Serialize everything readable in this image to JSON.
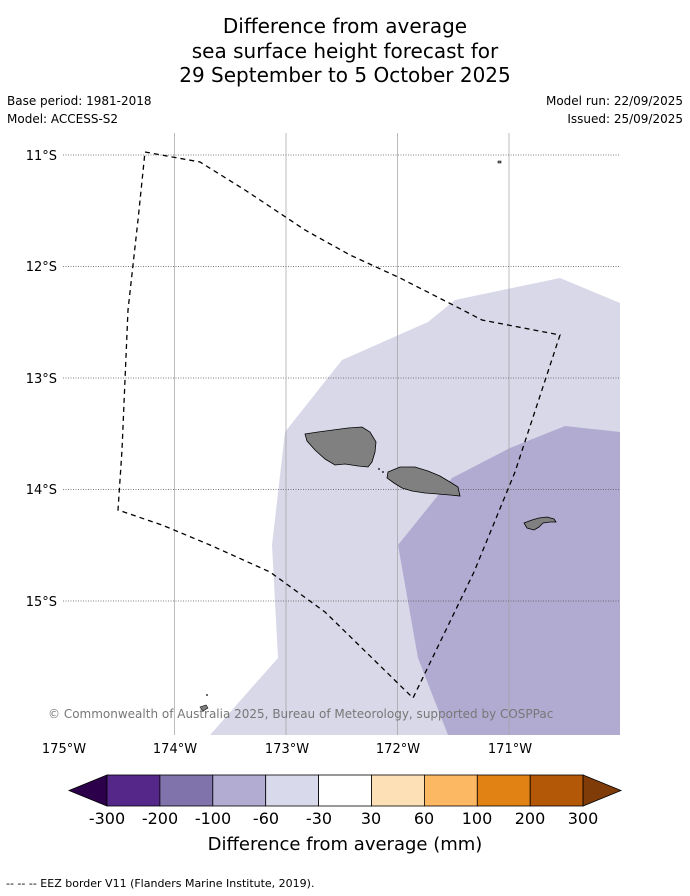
{
  "title": {
    "line1": "Difference from average",
    "line2": "sea surface height forecast for",
    "line3": "29 September to 5 October 2025"
  },
  "meta": {
    "base_period": "Base period: 1981-2018",
    "model": "Model: ACCESS-S2",
    "model_run": "Model run: 22/09/2025",
    "issued": "Issued: 25/09/2025"
  },
  "map": {
    "lat_labels": [
      "11°S",
      "12°S",
      "13°S",
      "14°S",
      "15°S"
    ],
    "lon_labels": [
      "175°W",
      "174°W",
      "173°W",
      "172°W",
      "171°W"
    ],
    "copyright": "© Commonwealth of Australia 2025, Bureau of Meteorology, supported by COSPPac",
    "colors": {
      "land": "#808080",
      "class_neg30_0": "#d8d8e9",
      "class_neg60_neg30": "#b1abd2"
    }
  },
  "colorbar": {
    "tick_labels": [
      "-300",
      "-200",
      "-100",
      "-60",
      "-30",
      "30",
      "60",
      "100",
      "200",
      "300"
    ],
    "label": "Difference from average (mm)",
    "colors": [
      "#2d004b",
      "#542788",
      "#8073ac",
      "#b2abd2",
      "#d8daeb",
      "#ffffff",
      "#fee0b6",
      "#fdb863",
      "#e08214",
      "#b35806",
      "#7f3b08"
    ]
  },
  "footer": {
    "legend_text": "--  --  -- EEZ border V11 (Flanders Marine Institute, 2019)."
  }
}
